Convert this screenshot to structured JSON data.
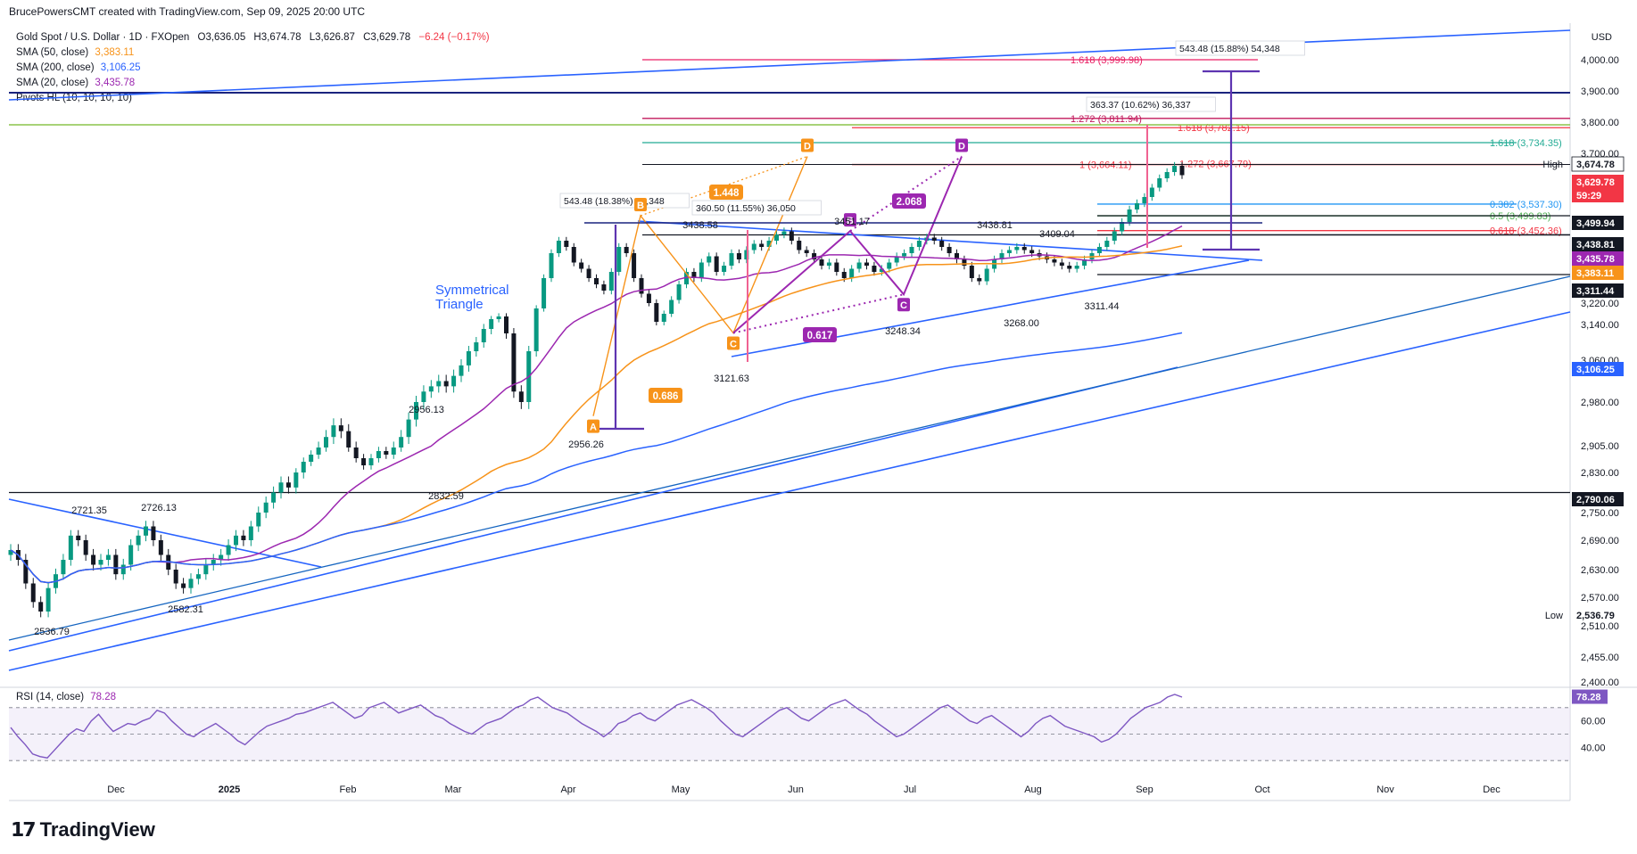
{
  "attribution": "BrucePowersCMT created with TradingView.com, Sep 09, 2025 20:00 UTC",
  "header": {
    "symbol": "Gold Spot / U.S. Dollar · 1D · FXOpen",
    "open": "O3,636.05",
    "high": "H3,674.78",
    "low": "L3,626.87",
    "close": "C3,629.78",
    "change": "−6.24 (−0.17%)"
  },
  "indicators": [
    {
      "label": "SMA (50, close)",
      "value": "3,383.11",
      "color": "#f7931a"
    },
    {
      "label": "SMA (200, close)",
      "value": "3,106.25",
      "color": "#2962ff"
    },
    {
      "label": "SMA (20, close)",
      "value": "3,435.78",
      "color": "#9c27b0"
    },
    {
      "label": "Pivots HL (10, 10, 10, 10)",
      "value": "",
      "color": "#131722"
    }
  ],
  "currency": "USD",
  "price_axis": {
    "ticks": [
      "4,000.00",
      "3,900.00",
      "3,800.00",
      "3,700.00",
      "3,220.00",
      "3,140.00",
      "3,060.00",
      "2,980.00",
      "2,905.00",
      "2,830.00",
      "2,750.00",
      "2,690.00",
      "2,630.00",
      "2,570.00",
      "2,510.00",
      "2,455.00",
      "2,400.00"
    ],
    "badges": [
      {
        "text": "3,674.78",
        "label": "High",
        "bg": "#ffffff",
        "fg": "#131722",
        "border": true
      },
      {
        "text": "3,629.78",
        "bg": "#f23645",
        "fg": "#ffffff"
      },
      {
        "text": "59:29",
        "bg": "#f23645",
        "fg": "#ffffff"
      },
      {
        "text": "3,499.94",
        "bg": "#131722",
        "fg": "#ffffff"
      },
      {
        "text": "3,438.81",
        "bg": "#131722",
        "fg": "#ffffff"
      },
      {
        "text": "3,435.78",
        "bg": "#9c27b0",
        "fg": "#ffffff"
      },
      {
        "text": "3,383.11",
        "bg": "#f7931a",
        "fg": "#ffffff"
      },
      {
        "text": "3,311.44",
        "bg": "#131722",
        "fg": "#ffffff"
      },
      {
        "text": "3,106.25",
        "bg": "#2962ff",
        "fg": "#ffffff"
      },
      {
        "text": "2,790.06",
        "bg": "#131722",
        "fg": "#ffffff"
      },
      {
        "text": "2,536.79",
        "label": "Low",
        "bg": "#ffffff",
        "fg": "#131722",
        "border": false
      }
    ]
  },
  "time_axis": [
    "Dec",
    "2025",
    "Feb",
    "Mar",
    "Apr",
    "May",
    "Jun",
    "Jul",
    "Aug",
    "Sep",
    "Oct",
    "Nov",
    "Dec"
  ],
  "rsi": {
    "label": "RSI (14, close)",
    "value": "78.28",
    "ticks": [
      "60.00",
      "40.00"
    ],
    "values": [
      55,
      48,
      42,
      35,
      33,
      32,
      38,
      44,
      50,
      54,
      52,
      60,
      65,
      58,
      52,
      55,
      58,
      57,
      60,
      62,
      68,
      66,
      60,
      55,
      50,
      48,
      52,
      55,
      58,
      54,
      50,
      45,
      42,
      47,
      52,
      56,
      58,
      60,
      62,
      65,
      66,
      68,
      70,
      72,
      74,
      70,
      66,
      62,
      64,
      70,
      72,
      74,
      70,
      66,
      68,
      70,
      72,
      68,
      64,
      62,
      58,
      55,
      52,
      50,
      54,
      58,
      60,
      62,
      66,
      70,
      72,
      76,
      78,
      74,
      70,
      68,
      66,
      62,
      58,
      55,
      52,
      48,
      52,
      58,
      60,
      64,
      66,
      62,
      60,
      64,
      68,
      72,
      74,
      76,
      73,
      70,
      66,
      60,
      55,
      50,
      48,
      52,
      56,
      60,
      64,
      68,
      70,
      66,
      62,
      60,
      64,
      68,
      72,
      74,
      76,
      72,
      68,
      65,
      60,
      56,
      52,
      48,
      50,
      54,
      58,
      62,
      66,
      70,
      72,
      68,
      64,
      60,
      58,
      62,
      64,
      60,
      56,
      52,
      48,
      52,
      58,
      62,
      64,
      60,
      56,
      54,
      52,
      50,
      48,
      44,
      46,
      50,
      56,
      62,
      66,
      70,
      72,
      74,
      78,
      80,
      78
    ]
  },
  "chart_data": {
    "type": "candlestick",
    "title": "Gold Spot / U.S. Dollar · 1D · FXOpen",
    "ylabel": "USD",
    "ylim": [
      2400,
      4050
    ],
    "x_range": [
      "Nov 2024",
      "Dec 2025"
    ],
    "series_summary": [
      {
        "name": "SMA (50, close)",
        "last": 3383.11
      },
      {
        "name": "SMA (200, close)",
        "last": 3106.25
      },
      {
        "name": "SMA (20, close)",
        "last": 3435.78
      }
    ],
    "pivot_labels": [
      "2721.35",
      "2726.13",
      "2536.79",
      "2582.31",
      "2956.13",
      "2832.59",
      "2956.26",
      "3438.58",
      "3121.63",
      "3451.17",
      "3268.00",
      "3438.81",
      "3409.04",
      "3311.44",
      "3248.34"
    ],
    "horizontal_levels": [
      {
        "label": "1.618 (3,999.98)",
        "value": 3999.98,
        "color": "#e91e63"
      },
      {
        "label": "1.272 (3,811.94)",
        "value": 3811.94,
        "color": "#c2185b"
      },
      {
        "label": "1.618 (3,782.15)",
        "value": 3782.15,
        "color": "#f23645"
      },
      {
        "label": "1.618 (3,734.35)",
        "value": 3734.35,
        "color": "#22ab94"
      },
      {
        "label": "1 (3,664.11)",
        "value": 3664.11,
        "color": "#f23645"
      },
      {
        "label": "1.272 (3,667.79)",
        "value": 3667.79,
        "color": "#f23645"
      },
      {
        "label": "0.382 (3,537.30)",
        "value": 3537.3,
        "color": "#2196f3"
      },
      {
        "label": "0.5 (3,499.83)",
        "value": 3499.83,
        "color": "#4caf50"
      },
      {
        "label": "0.618 (3,452.36)",
        "value": 3452.36,
        "color": "#f23645"
      }
    ],
    "measures": [
      "543.48 (18.38%) 54,348",
      "360.50 (11.55%) 36,050",
      "363.37 (10.62%) 36,337",
      "543.48 (15.88%) 54,348"
    ],
    "pattern_labels": [
      "A",
      "B",
      "C",
      "D",
      "B",
      "C",
      "D"
    ],
    "ratio_labels": [
      "1.448",
      "0.686",
      "2.068",
      "0.617"
    ],
    "annotation": [
      "Symmetrical",
      "Triangle"
    ]
  },
  "branding": "TradingView"
}
